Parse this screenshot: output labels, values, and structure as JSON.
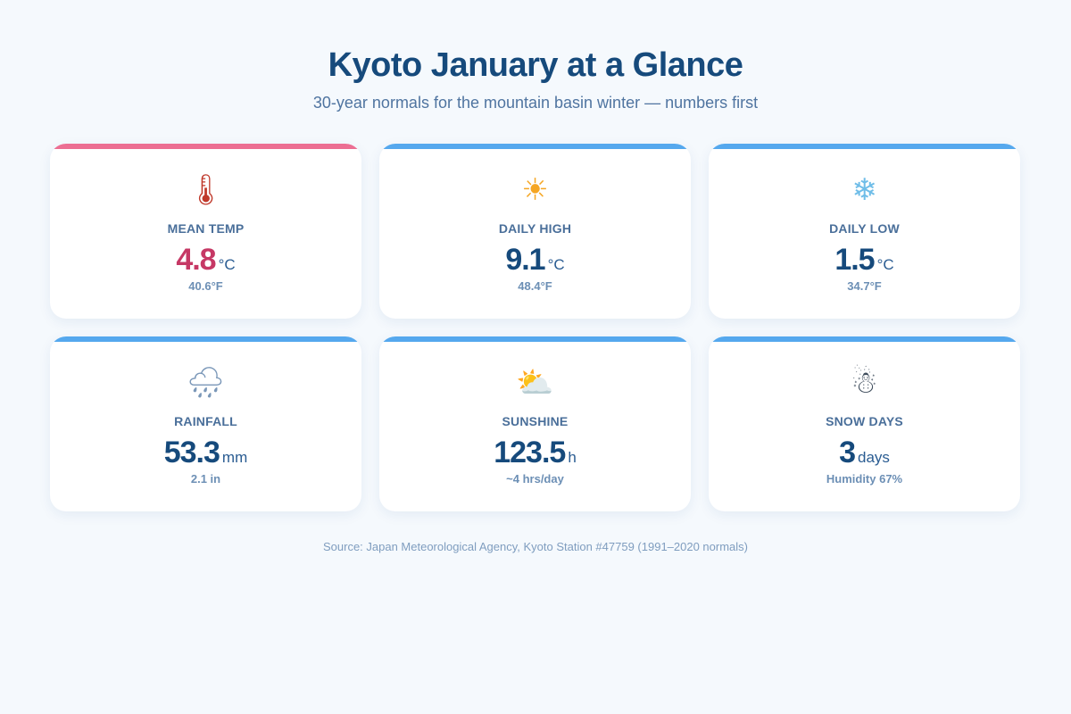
{
  "header": {
    "title": "Kyoto January at a Glance",
    "subtitle": "30-year normals for the mountain basin winter — numbers first"
  },
  "cards": [
    {
      "icon": "thermometer-icon",
      "glyph": "🌡",
      "label": "MEAN TEMP",
      "value": "4.8",
      "unit": "°C",
      "sub": "40.6°F",
      "accent_color": "#ec6e93"
    },
    {
      "icon": "sun-icon",
      "glyph": "☀",
      "label": "DAILY HIGH",
      "value": "9.1",
      "unit": "°C",
      "sub": "48.4°F",
      "accent_color": "#55a8ee"
    },
    {
      "icon": "snowflake-icon",
      "glyph": "❄",
      "label": "DAILY LOW",
      "value": "1.5",
      "unit": "°C",
      "sub": "34.7°F",
      "accent_color": "#55a8ee"
    },
    {
      "icon": "rain-cloud-icon",
      "glyph": "🌧",
      "label": "RAINFALL",
      "value": "53.3",
      "unit": "mm",
      "sub": "2.1 in",
      "accent_color": "#55a8ee"
    },
    {
      "icon": "sun-behind-cloud-icon",
      "glyph": "⛅",
      "label": "SUNSHINE",
      "value": "123.5",
      "unit": "h",
      "sub": "~4 hrs/day",
      "accent_color": "#55a8ee"
    },
    {
      "icon": "snowman-icon",
      "glyph": "☃",
      "label": "SNOW DAYS",
      "value": "3",
      "unit": "days",
      "sub": "Humidity 67%",
      "accent_color": "#55a8ee"
    }
  ],
  "footer": {
    "source": "Source: Japan Meteorological Agency, Kyoto Station #47759 (1991–2020 normals)"
  }
}
